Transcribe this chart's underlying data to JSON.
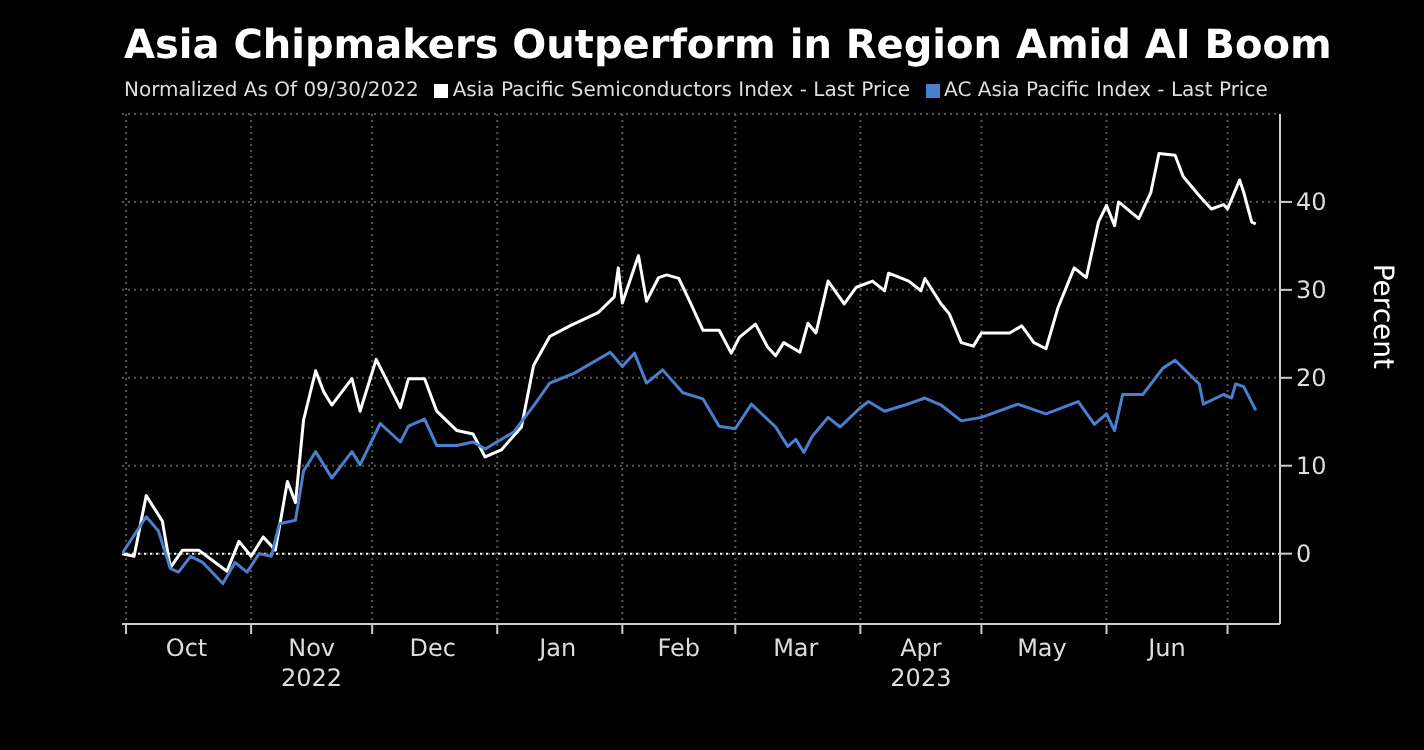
{
  "chart_data": {
    "type": "line",
    "title": "Asia Chipmakers Outperform in Region Amid AI Boom",
    "subtitle": "Normalized As Of 09/30/2022",
    "ylabel": "Percent",
    "xlim": [
      "2022-09-30",
      "2023-07-14"
    ],
    "ylim": [
      -8,
      50
    ],
    "yticks": [
      0,
      10,
      20,
      30,
      40
    ],
    "xticks": [
      {
        "value": "2022-10-01",
        "label": null
      },
      {
        "value": "2022-10-16",
        "label": "Oct"
      },
      {
        "value": "2022-11-01",
        "label": null
      },
      {
        "value": "2022-11-16",
        "label": "Nov\n2022"
      },
      {
        "value": "2022-12-01",
        "label": null
      },
      {
        "value": "2022-12-16",
        "label": "Dec"
      },
      {
        "value": "2023-01-01",
        "label": null
      },
      {
        "value": "2023-01-16",
        "label": "Jan"
      },
      {
        "value": "2023-02-01",
        "label": null
      },
      {
        "value": "2023-02-15",
        "label": "Feb"
      },
      {
        "value": "2023-03-01",
        "label": null
      },
      {
        "value": "2023-03-16",
        "label": "Mar"
      },
      {
        "value": "2023-04-01",
        "label": null
      },
      {
        "value": "2023-04-16",
        "label": "Apr\n2023"
      },
      {
        "value": "2023-05-01",
        "label": null
      },
      {
        "value": "2023-05-16",
        "label": "May"
      },
      {
        "value": "2023-06-01",
        "label": null
      },
      {
        "value": "2023-06-16",
        "label": "Jun"
      },
      {
        "value": "2023-07-01",
        "label": null
      }
    ],
    "grid": true,
    "legend": "top",
    "line_style": "solid",
    "marker": "none",
    "ref_lines": [
      {
        "axis": "y",
        "value": 0,
        "label": null,
        "color": "#ffffff",
        "line_style": "dotted"
      }
    ],
    "series": [
      {
        "name": "Asia Pacific Semiconductors Index - Last Price",
        "color": "#ffffff",
        "x": [
          "2022-09-30",
          "2022-10-03",
          "2022-10-06",
          "2022-10-10",
          "2022-10-12",
          "2022-10-15",
          "2022-10-19",
          "2022-10-26",
          "2022-10-29",
          "2022-11-01",
          "2022-11-04",
          "2022-11-07",
          "2022-11-10",
          "2022-11-12",
          "2022-11-14",
          "2022-11-17",
          "2022-11-19",
          "2022-11-21",
          "2022-11-26",
          "2022-11-28",
          "2022-12-02",
          "2022-12-08",
          "2022-12-10",
          "2022-12-14",
          "2022-12-17",
          "2022-12-22",
          "2022-12-26",
          "2022-12-29",
          "2023-01-02",
          "2023-01-07",
          "2023-01-10",
          "2023-01-14",
          "2023-01-19",
          "2023-01-26",
          "2023-01-30",
          "2023-01-31",
          "2023-02-01",
          "2023-02-05",
          "2023-02-07",
          "2023-02-10",
          "2023-02-12",
          "2023-02-15",
          "2023-02-18",
          "2023-02-21",
          "2023-02-25",
          "2023-02-28",
          "2023-03-02",
          "2023-03-06",
          "2023-03-09",
          "2023-03-11",
          "2023-03-13",
          "2023-03-17",
          "2023-03-19",
          "2023-03-21",
          "2023-03-24",
          "2023-03-28",
          "2023-03-31",
          "2023-04-04",
          "2023-04-07",
          "2023-04-08",
          "2023-04-13",
          "2023-04-16",
          "2023-04-17",
          "2023-04-21",
          "2023-04-23",
          "2023-04-26",
          "2023-04-29",
          "2023-05-01",
          "2023-05-08",
          "2023-05-11",
          "2023-05-14",
          "2023-05-17",
          "2023-05-20",
          "2023-05-24",
          "2023-05-27",
          "2023-05-30",
          "2023-06-01",
          "2023-06-03",
          "2023-06-04",
          "2023-06-09",
          "2023-06-12",
          "2023-06-14",
          "2023-06-18",
          "2023-06-20",
          "2023-06-24",
          "2023-06-27",
          "2023-06-30",
          "2023-07-01",
          "2023-07-04",
          "2023-07-05",
          "2023-07-07",
          "2023-07-08"
        ],
        "values": [
          0,
          -0.3,
          6.6,
          3.7,
          -1.6,
          0.4,
          0.4,
          -2,
          1.4,
          -0.3,
          1.9,
          0.4,
          8.2,
          5.8,
          15.2,
          20.8,
          18.4,
          16.9,
          19.9,
          16.2,
          22.1,
          16.6,
          19.9,
          19.9,
          16.2,
          14,
          13.6,
          11,
          11.8,
          14.4,
          21.4,
          24.7,
          25.9,
          27.4,
          29.2,
          32.5,
          28.5,
          33.9,
          28.7,
          31.4,
          31.7,
          31.3,
          28.4,
          25.4,
          25.4,
          22.8,
          24.6,
          26.1,
          23.5,
          22.5,
          24,
          22.9,
          26.2,
          25.1,
          31,
          28.4,
          30.3,
          31,
          29.9,
          31.9,
          31,
          29.9,
          31.3,
          28.4,
          27.3,
          24,
          23.6,
          25.1,
          25.1,
          25.9,
          24,
          23.3,
          28,
          32.5,
          31.4,
          37.7,
          39.6,
          37.3,
          40,
          38.1,
          41.1,
          45.5,
          45.3,
          42.9,
          40.7,
          39.2,
          39.7,
          39.2,
          42.5,
          41.1,
          37.7,
          37.5
        ]
      },
      {
        "name": "AC Asia Pacific Index - Last Price",
        "color": "#4a7fd0",
        "x": [
          "2022-09-30",
          "2022-10-06",
          "2022-10-09",
          "2022-10-12",
          "2022-10-14",
          "2022-10-17",
          "2022-10-20",
          "2022-10-25",
          "2022-10-28",
          "2022-10-31",
          "2022-11-03",
          "2022-11-06",
          "2022-11-08",
          "2022-11-12",
          "2022-11-14",
          "2022-11-17",
          "2022-11-19",
          "2022-11-21",
          "2022-11-26",
          "2022-11-28",
          "2022-12-03",
          "2022-12-08",
          "2022-12-10",
          "2022-12-14",
          "2022-12-17",
          "2022-12-22",
          "2022-12-26",
          "2022-12-29",
          "2023-01-05",
          "2023-01-10",
          "2023-01-14",
          "2023-01-20",
          "2023-01-29",
          "2023-02-01",
          "2023-02-04",
          "2023-02-07",
          "2023-02-11",
          "2023-02-16",
          "2023-02-21",
          "2023-02-25",
          "2023-03-01",
          "2023-03-05",
          "2023-03-11",
          "2023-03-14",
          "2023-03-16",
          "2023-03-18",
          "2023-03-20",
          "2023-03-24",
          "2023-03-27",
          "2023-04-01",
          "2023-04-03",
          "2023-04-07",
          "2023-04-12",
          "2023-04-17",
          "2023-04-21",
          "2023-04-26",
          "2023-05-01",
          "2023-05-10",
          "2023-05-17",
          "2023-05-25",
          "2023-05-29",
          "2023-06-01",
          "2023-06-03",
          "2023-06-05",
          "2023-06-10",
          "2023-06-15",
          "2023-06-18",
          "2023-06-24",
          "2023-06-25",
          "2023-06-30",
          "2023-07-02",
          "2023-07-03",
          "2023-07-05",
          "2023-07-08"
        ],
        "values": [
          0,
          4.2,
          2.6,
          -1.7,
          -2.1,
          -0.3,
          -1,
          -3.4,
          -1,
          -2.1,
          0,
          -0.3,
          3.4,
          3.8,
          9.4,
          11.6,
          10.1,
          8.6,
          11.6,
          10.1,
          14.8,
          12.7,
          14.5,
          15.3,
          12.3,
          12.3,
          12.7,
          11.9,
          13.8,
          16.8,
          19.4,
          20.5,
          22.9,
          21.3,
          22.8,
          19.4,
          20.9,
          18.3,
          17.6,
          14.5,
          14.2,
          17,
          14.4,
          12.2,
          13,
          11.5,
          13.3,
          15.5,
          14.4,
          16.6,
          17.3,
          16.2,
          16.9,
          17.7,
          16.9,
          15.1,
          15.5,
          17,
          15.9,
          17.3,
          14.7,
          15.9,
          14,
          18.1,
          18.1,
          21.1,
          22,
          19.3,
          17,
          18.1,
          17.7,
          19.3,
          19,
          16.3
        ]
      }
    ]
  }
}
